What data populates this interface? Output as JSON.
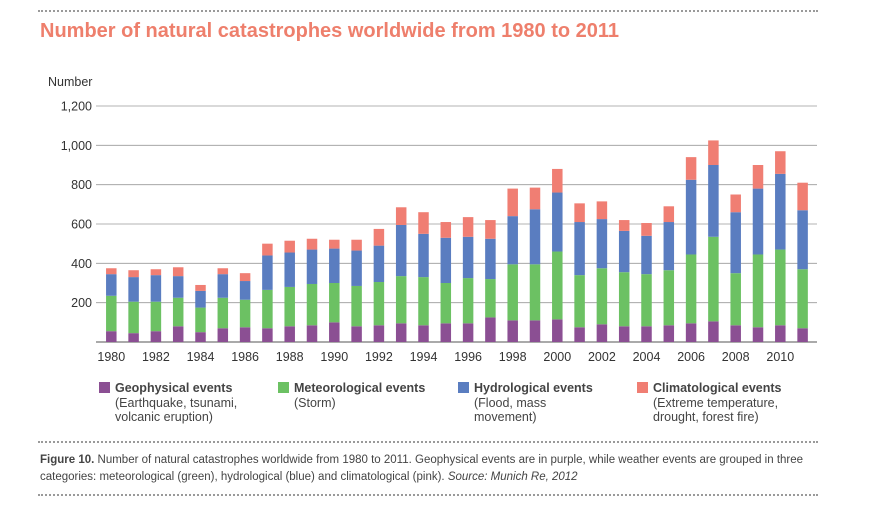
{
  "title": "Number of natural catastrophes worldwide from 1980 to 2011",
  "chart_data": {
    "type": "bar",
    "stacked": true,
    "title": "Number of natural catastrophes worldwide from 1980 to 2011",
    "xlabel": "",
    "ylabel": "Number",
    "ylim": [
      0,
      1200
    ],
    "yticks": [
      "200",
      "400",
      "600",
      "800",
      "1,000",
      "1,200"
    ],
    "grid": true,
    "legend_position": "bottom",
    "x_tick_labels": [
      "1980",
      "1982",
      "1984",
      "1986",
      "1988",
      "1990",
      "1992",
      "1994",
      "1996",
      "1998",
      "2000",
      "2002",
      "2004",
      "2006",
      "2008",
      "2010"
    ],
    "categories": [
      "1980",
      "1981",
      "1982",
      "1983",
      "1984",
      "1985",
      "1986",
      "1987",
      "1988",
      "1989",
      "1990",
      "1991",
      "1992",
      "1993",
      "1994",
      "1995",
      "1996",
      "1997",
      "1998",
      "1999",
      "2000",
      "2001",
      "2002",
      "2003",
      "2004",
      "2005",
      "2006",
      "2007",
      "2008",
      "2009",
      "2010",
      "2011"
    ],
    "series": [
      {
        "name": "Geophysical events",
        "color": "#8b4f93",
        "values": [
          55,
          45,
          55,
          80,
          50,
          70,
          75,
          70,
          80,
          85,
          100,
          80,
          85,
          95,
          85,
          95,
          95,
          125,
          110,
          110,
          115,
          75,
          90,
          80,
          80,
          85,
          95,
          105,
          85,
          75,
          85,
          70
        ]
      },
      {
        "name": "Meteorological events",
        "color": "#6cc163",
        "values": [
          180,
          160,
          150,
          145,
          125,
          155,
          140,
          195,
          200,
          210,
          200,
          205,
          220,
          240,
          245,
          205,
          230,
          195,
          285,
          285,
          345,
          265,
          285,
          275,
          265,
          280,
          350,
          430,
          265,
          370,
          385,
          300
        ]
      },
      {
        "name": "Hydrological events",
        "color": "#5a7dc0",
        "values": [
          110,
          125,
          135,
          110,
          85,
          120,
          95,
          175,
          175,
          175,
          175,
          180,
          185,
          260,
          220,
          230,
          210,
          205,
          245,
          280,
          300,
          270,
          250,
          210,
          195,
          245,
          380,
          365,
          310,
          335,
          385,
          300
        ]
      },
      {
        "name": "Climatological events",
        "color": "#f07e73",
        "values": [
          30,
          35,
          30,
          45,
          30,
          30,
          40,
          60,
          60,
          55,
          45,
          55,
          85,
          90,
          110,
          80,
          100,
          95,
          140,
          110,
          120,
          95,
          90,
          55,
          65,
          80,
          115,
          125,
          90,
          120,
          115,
          140
        ]
      }
    ]
  },
  "legend": [
    {
      "label": "Geophysical events",
      "sub1": "(Earthquake, tsunami,",
      "sub2": "volcanic eruption)"
    },
    {
      "label": "Meteorological events",
      "sub1": "(Storm)",
      "sub2": ""
    },
    {
      "label": "Hydrological events",
      "sub1": "(Flood, mass",
      "sub2": "movement)"
    },
    {
      "label": "Climatological events",
      "sub1": "(Extreme temperature,",
      "sub2": "drought, forest fire)"
    }
  ],
  "caption": {
    "figure_label": "Figure 10.",
    "text": " Number of natural catastrophes worldwide from 1980 to 2011. Geophysical events are in purple, while weather events are grouped in three categories: meteorological (green), hydrological (blue) and climatological (pink). ",
    "source": "Source: Munich Re, 2012"
  }
}
